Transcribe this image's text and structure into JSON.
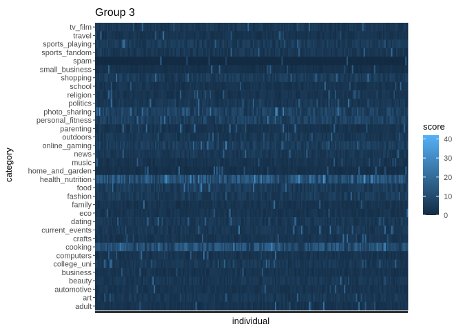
{
  "chart_data": {
    "type": "heatmap",
    "title": "Group 3",
    "xlabel": "individual",
    "ylabel": "category",
    "categories": [
      "tv_film",
      "travel",
      "sports_playing",
      "sports_fandom",
      "spam",
      "small_business",
      "shopping",
      "school",
      "religion",
      "politics",
      "photo_sharing",
      "personal_fitness",
      "parenting",
      "outdoors",
      "online_gaming",
      "news",
      "music",
      "home_and_garden",
      "health_nutrition",
      "food",
      "fashion",
      "family",
      "eco",
      "dating",
      "current_events",
      "crafts",
      "cooking",
      "computers",
      "college_uni",
      "business",
      "beauty",
      "automotive",
      "art",
      "adult"
    ],
    "row_mean_score": [
      4,
      3,
      5,
      4,
      0,
      2,
      5,
      3,
      3,
      4,
      7,
      7,
      3,
      4,
      6,
      4,
      3,
      2,
      12,
      5,
      5,
      3,
      3,
      4,
      4,
      3,
      11,
      3,
      4,
      3,
      4,
      3,
      4,
      3
    ],
    "color_scale": {
      "legend_title": "score",
      "min": 0,
      "max": 42,
      "low_color": "#132B43",
      "high_color": "#56B1F7",
      "breaks": [
        0,
        10,
        20,
        30,
        40
      ]
    },
    "grid": false
  }
}
